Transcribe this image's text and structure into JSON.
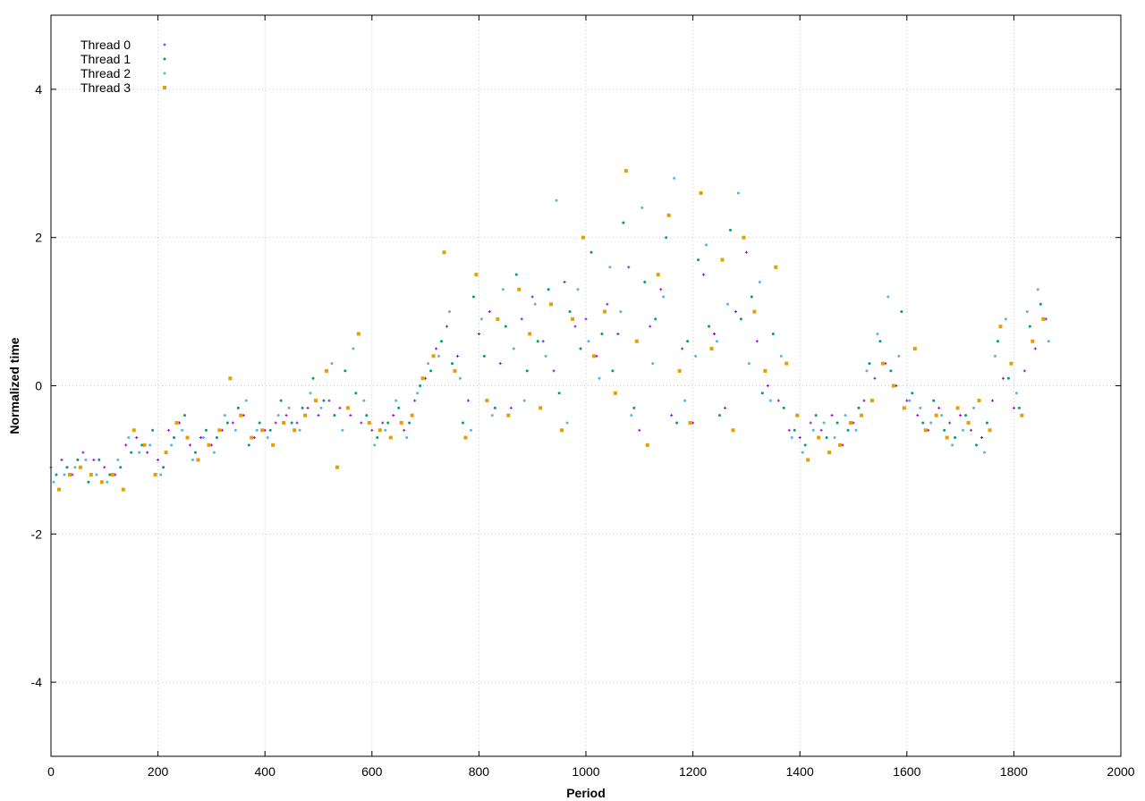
{
  "chart_data": {
    "type": "scatter",
    "title": "",
    "xlabel": "Period",
    "ylabel": "Normalized time",
    "xlim": [
      0,
      2000
    ],
    "ylim": [
      -5,
      5
    ],
    "xticks": [
      0,
      200,
      400,
      600,
      800,
      1000,
      1200,
      1400,
      1600,
      1800,
      2000
    ],
    "yticks": [
      -4,
      -2,
      0,
      2,
      4
    ],
    "grid": true,
    "legend_position": "top-left",
    "series": [
      {
        "name": "Thread 0",
        "color": "#9400d3",
        "marker": "plus",
        "x": [
          0,
          20,
          40,
          60,
          80,
          100,
          120,
          140,
          160,
          180,
          200,
          220,
          240,
          260,
          280,
          300,
          320,
          340,
          360,
          380,
          400,
          420,
          440,
          460,
          480,
          500,
          520,
          540,
          560,
          580,
          600,
          620,
          640,
          660,
          680,
          700,
          720,
          740,
          760,
          780,
          800,
          820,
          840,
          860,
          880,
          900,
          920,
          940,
          960,
          980,
          1000,
          1020,
          1040,
          1060,
          1080,
          1100,
          1120,
          1140,
          1160,
          1180,
          1200,
          1220,
          1240,
          1260,
          1280,
          1300,
          1320,
          1340,
          1360,
          1380,
          1400,
          1420,
          1440,
          1460,
          1480,
          1500,
          1520,
          1540,
          1560,
          1580,
          1600,
          1620,
          1640,
          1660,
          1680,
          1700,
          1720,
          1740,
          1760,
          1780,
          1800,
          1820,
          1840,
          1860
        ],
        "y": [
          -1.1,
          -1.0,
          -1.2,
          -0.9,
          -1.0,
          -1.1,
          -1.2,
          -0.8,
          -0.7,
          -0.9,
          -1.0,
          -0.6,
          -0.5,
          -0.8,
          -0.7,
          -0.8,
          -0.6,
          -0.5,
          -0.4,
          -0.7,
          -0.6,
          -0.5,
          -0.4,
          -0.5,
          -0.3,
          -0.4,
          -0.2,
          -0.3,
          -0.4,
          -0.5,
          -0.6,
          -0.5,
          -0.4,
          -0.6,
          -0.2,
          0.1,
          0.5,
          0.8,
          0.4,
          -0.2,
          0.7,
          1.0,
          0.3,
          -0.3,
          0.9,
          1.2,
          0.6,
          0.2,
          1.4,
          0.8,
          0.9,
          0.4,
          1.1,
          0.7,
          1.6,
          -0.6,
          0.8,
          1.3,
          -0.4,
          0.5,
          -0.5,
          1.5,
          0.7,
          -0.3,
          1.0,
          1.8,
          0.6,
          0.0,
          -0.2,
          -0.6,
          -0.7,
          -0.5,
          -0.6,
          -0.4,
          -0.8,
          -0.5,
          -0.2,
          0.1,
          0.3,
          0.0,
          -0.2,
          -0.4,
          -0.6,
          -0.3,
          -0.5,
          -0.4,
          -0.6,
          -0.7,
          -0.2,
          0.1,
          -0.3,
          0.2,
          0.5,
          0.9
        ]
      },
      {
        "name": "Thread 1",
        "color": "#009e73",
        "marker": "point",
        "x": [
          10,
          30,
          50,
          70,
          90,
          110,
          130,
          150,
          170,
          190,
          210,
          230,
          250,
          270,
          290,
          310,
          330,
          350,
          370,
          390,
          410,
          430,
          450,
          470,
          490,
          510,
          530,
          550,
          570,
          590,
          610,
          630,
          650,
          670,
          690,
          710,
          730,
          750,
          770,
          790,
          810,
          830,
          850,
          870,
          890,
          910,
          930,
          950,
          970,
          990,
          1010,
          1030,
          1050,
          1070,
          1090,
          1110,
          1130,
          1150,
          1170,
          1190,
          1210,
          1230,
          1250,
          1270,
          1290,
          1310,
          1330,
          1350,
          1370,
          1390,
          1410,
          1430,
          1450,
          1470,
          1490,
          1510,
          1530,
          1550,
          1570,
          1590,
          1610,
          1630,
          1650,
          1670,
          1690,
          1710,
          1730,
          1750,
          1770,
          1790,
          1810,
          1830,
          1850
        ],
        "y": [
          -1.2,
          -1.1,
          -1.0,
          -1.3,
          -1.0,
          -1.2,
          -1.1,
          -0.9,
          -0.8,
          -0.6,
          -1.1,
          -0.7,
          -0.4,
          -0.9,
          -0.6,
          -0.7,
          -0.5,
          -0.3,
          -0.8,
          -0.5,
          -0.6,
          -0.2,
          -0.5,
          -0.3,
          0.1,
          -0.2,
          -0.4,
          0.2,
          -0.1,
          -0.4,
          -0.7,
          -0.5,
          -0.3,
          -0.5,
          0.0,
          0.2,
          0.6,
          0.3,
          -0.5,
          1.2,
          0.4,
          -0.3,
          0.8,
          1.5,
          0.2,
          0.6,
          1.3,
          -0.1,
          1.0,
          0.5,
          1.8,
          0.7,
          0.2,
          2.2,
          -0.3,
          1.4,
          0.9,
          2.0,
          -0.5,
          0.6,
          1.7,
          0.8,
          -0.4,
          2.1,
          0.9,
          1.2,
          -0.1,
          0.7,
          -0.3,
          -0.6,
          -0.8,
          -0.4,
          -0.7,
          -0.5,
          -0.6,
          -0.3,
          0.3,
          0.6,
          0.2,
          1.0,
          -0.1,
          -0.5,
          -0.2,
          -0.6,
          -0.7,
          -0.4,
          -0.8,
          -0.5,
          0.6,
          0.1,
          -0.3,
          0.8,
          1.1
        ]
      },
      {
        "name": "Thread 2",
        "color": "#56b4e9",
        "marker": "point",
        "x": [
          5,
          25,
          45,
          65,
          85,
          105,
          125,
          145,
          165,
          185,
          205,
          225,
          245,
          265,
          285,
          305,
          325,
          345,
          365,
          385,
          405,
          425,
          445,
          465,
          485,
          505,
          525,
          545,
          565,
          585,
          605,
          625,
          645,
          665,
          685,
          705,
          725,
          745,
          765,
          785,
          805,
          825,
          845,
          865,
          885,
          905,
          925,
          945,
          965,
          985,
          1005,
          1025,
          1045,
          1065,
          1085,
          1105,
          1125,
          1145,
          1165,
          1185,
          1205,
          1225,
          1245,
          1265,
          1285,
          1305,
          1325,
          1345,
          1365,
          1385,
          1405,
          1425,
          1445,
          1465,
          1485,
          1505,
          1525,
          1545,
          1565,
          1585,
          1605,
          1625,
          1645,
          1665,
          1685,
          1705,
          1725,
          1745,
          1765,
          1785,
          1805,
          1825,
          1845,
          1865
        ],
        "y": [
          -1.3,
          -1.2,
          -1.1,
          -1.0,
          -1.2,
          -1.3,
          -1.0,
          -0.7,
          -0.9,
          -0.8,
          -1.2,
          -0.8,
          -0.6,
          -1.0,
          -0.7,
          -0.9,
          -0.4,
          -0.6,
          -0.2,
          -0.6,
          -0.7,
          -0.4,
          -0.3,
          -0.6,
          -0.1,
          -0.3,
          0.3,
          -0.6,
          0.5,
          -0.2,
          -0.8,
          -0.6,
          -0.2,
          -0.7,
          -0.1,
          0.3,
          0.4,
          1.0,
          0.1,
          -0.6,
          0.9,
          -0.4,
          1.3,
          0.5,
          -0.2,
          1.1,
          0.4,
          2.5,
          -0.5,
          1.3,
          0.6,
          0.1,
          1.6,
          1.0,
          -0.4,
          2.4,
          0.3,
          1.2,
          2.8,
          -0.2,
          0.4,
          1.9,
          0.6,
          1.1,
          2.6,
          0.3,
          1.4,
          -0.2,
          0.4,
          -0.7,
          -0.9,
          -0.6,
          -0.5,
          -0.7,
          -0.4,
          -0.6,
          0.2,
          0.7,
          1.2,
          0.4,
          -0.2,
          -0.3,
          -0.5,
          -0.4,
          -0.8,
          -0.6,
          -0.3,
          -0.9,
          0.4,
          0.9,
          -0.1,
          1.0,
          1.3,
          0.6
        ]
      },
      {
        "name": "Thread 3",
        "color": "#e69f00",
        "marker": "square",
        "x": [
          15,
          35,
          55,
          75,
          95,
          115,
          135,
          155,
          175,
          195,
          215,
          235,
          255,
          275,
          295,
          315,
          335,
          355,
          375,
          395,
          415,
          435,
          455,
          475,
          495,
          515,
          535,
          555,
          575,
          595,
          615,
          635,
          655,
          675,
          695,
          715,
          735,
          755,
          775,
          795,
          815,
          835,
          855,
          875,
          895,
          915,
          935,
          955,
          975,
          995,
          1015,
          1035,
          1055,
          1075,
          1095,
          1115,
          1135,
          1155,
          1175,
          1195,
          1215,
          1235,
          1255,
          1275,
          1295,
          1315,
          1335,
          1355,
          1375,
          1395,
          1415,
          1435,
          1455,
          1475,
          1495,
          1515,
          1535,
          1555,
          1575,
          1595,
          1615,
          1635,
          1655,
          1675,
          1695,
          1715,
          1735,
          1755,
          1775,
          1795,
          1815,
          1835,
          1855
        ],
        "y": [
          -1.4,
          -1.2,
          -1.1,
          -1.2,
          -1.3,
          -1.2,
          -1.4,
          -0.6,
          -0.8,
          -1.2,
          -0.9,
          -0.5,
          -0.7,
          -1.0,
          -0.8,
          -0.6,
          0.1,
          -0.4,
          -0.7,
          -0.6,
          -0.8,
          -0.5,
          -0.6,
          -0.4,
          -0.2,
          0.2,
          -1.1,
          -0.3,
          0.7,
          -0.5,
          -0.6,
          -0.7,
          -0.5,
          -0.4,
          0.1,
          0.4,
          1.8,
          0.2,
          -0.7,
          1.5,
          -0.2,
          0.9,
          -0.4,
          1.3,
          0.7,
          -0.3,
          1.1,
          -0.6,
          0.9,
          2.0,
          0.4,
          1.0,
          -0.1,
          2.9,
          0.6,
          -0.8,
          1.5,
          2.3,
          0.2,
          -0.5,
          2.6,
          0.5,
          1.7,
          -0.6,
          2.0,
          1.0,
          0.2,
          1.6,
          0.3,
          -0.4,
          -1.0,
          -0.7,
          -0.9,
          -0.8,
          -0.5,
          -0.4,
          -0.2,
          0.3,
          0.0,
          -0.3,
          0.5,
          -0.6,
          -0.4,
          -0.7,
          -0.3,
          -0.5,
          -0.2,
          -0.6,
          0.8,
          0.3,
          -0.4,
          0.6,
          0.9
        ]
      }
    ]
  }
}
